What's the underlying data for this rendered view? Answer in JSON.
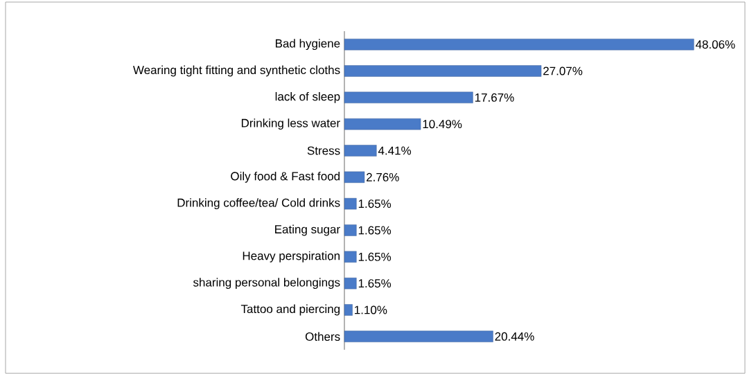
{
  "chart_data": {
    "type": "bar",
    "orientation": "horizontal",
    "categories": [
      "Bad hygiene",
      "Wearing tight fitting and synthetic cloths",
      "lack of sleep",
      "Drinking less water",
      "Stress",
      "Oily food & Fast food",
      "Drinking coffee/tea/ Cold drinks",
      "Eating sugar",
      "Heavy perspiration",
      "sharing personal belongings",
      "Tattoo and piercing",
      "Others"
    ],
    "values": [
      48.06,
      27.07,
      17.67,
      10.49,
      4.41,
      2.76,
      1.65,
      1.65,
      1.65,
      1.65,
      1.1,
      20.44
    ],
    "value_labels": [
      "48.06%",
      "27.07%",
      "17.67%",
      "10.49%",
      "4.41%",
      "2.76%",
      "1.65%",
      "1.65%",
      "1.65%",
      "1.65%",
      "1.10%",
      "20.44%"
    ],
    "color": "#4a7bc8"
  }
}
